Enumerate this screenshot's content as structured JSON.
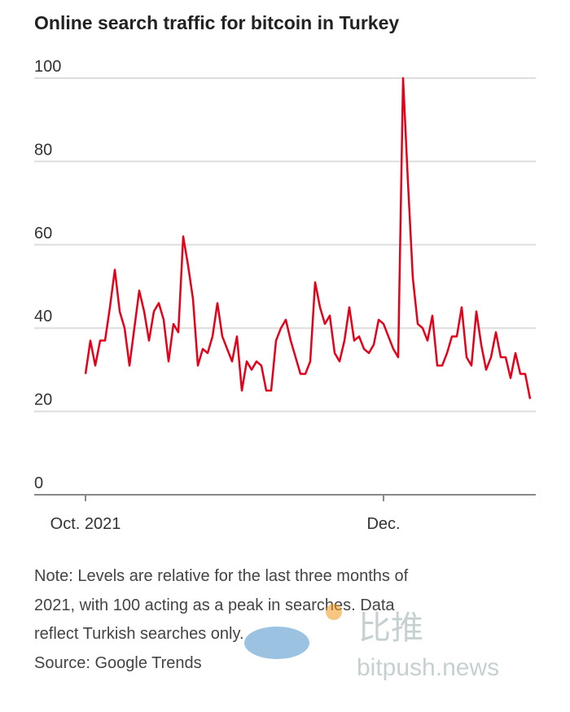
{
  "chart_data": {
    "type": "line",
    "title": "Online search traffic for bitcoin in Turkey",
    "categories": [
      "Oct. 2021",
      null,
      null,
      null,
      null,
      null,
      null,
      null,
      null,
      null,
      null,
      null,
      null,
      null,
      null,
      null,
      null,
      null,
      null,
      null,
      null,
      null,
      null,
      null,
      null,
      null,
      null,
      null,
      null,
      null,
      null,
      null,
      null,
      null,
      null,
      null,
      null,
      null,
      null,
      null,
      null,
      null,
      null,
      null,
      null,
      null,
      null,
      null,
      null,
      null,
      null,
      null,
      null,
      null,
      null,
      null,
      null,
      null,
      null,
      null,
      null,
      "Dec.",
      null,
      null,
      null,
      null,
      null,
      null,
      null,
      null,
      null,
      null,
      null,
      null,
      null,
      null,
      null,
      null,
      null,
      null,
      null,
      null,
      null,
      null,
      null,
      null,
      null,
      null,
      null,
      null,
      null,
      null
    ],
    "values": [
      29,
      37,
      31,
      37,
      37,
      45,
      54,
      44,
      40,
      31,
      40,
      49,
      44,
      37,
      44,
      46,
      42,
      32,
      41,
      39,
      62,
      55,
      47,
      31,
      35,
      34,
      38,
      46,
      38,
      35,
      32,
      38,
      25,
      32,
      30,
      32,
      31,
      25,
      25,
      37,
      40,
      42,
      37,
      33,
      29,
      29,
      32,
      51,
      45,
      41,
      43,
      34,
      32,
      37,
      45,
      37,
      38,
      35,
      34,
      36,
      42,
      41,
      38,
      35,
      33,
      100,
      75,
      52,
      41,
      40,
      37,
      43,
      31,
      31,
      34,
      38,
      38,
      45,
      33,
      31,
      44,
      36,
      30,
      33,
      39,
      33,
      33,
      28,
      34,
      29,
      29,
      23
    ],
    "color": "#e2001a",
    "ylim": [
      0,
      100
    ],
    "yticks": [
      0,
      20,
      40,
      60,
      80,
      100
    ],
    "grid": true,
    "note": [
      "Note: Levels are relative for the last three months of",
      "2021, with 100 acting as a peak in searches. Data",
      "reflect Turkish searches only."
    ],
    "source": "Source: Google Trends",
    "watermark": [
      "比推",
      "bitpush.news"
    ]
  }
}
